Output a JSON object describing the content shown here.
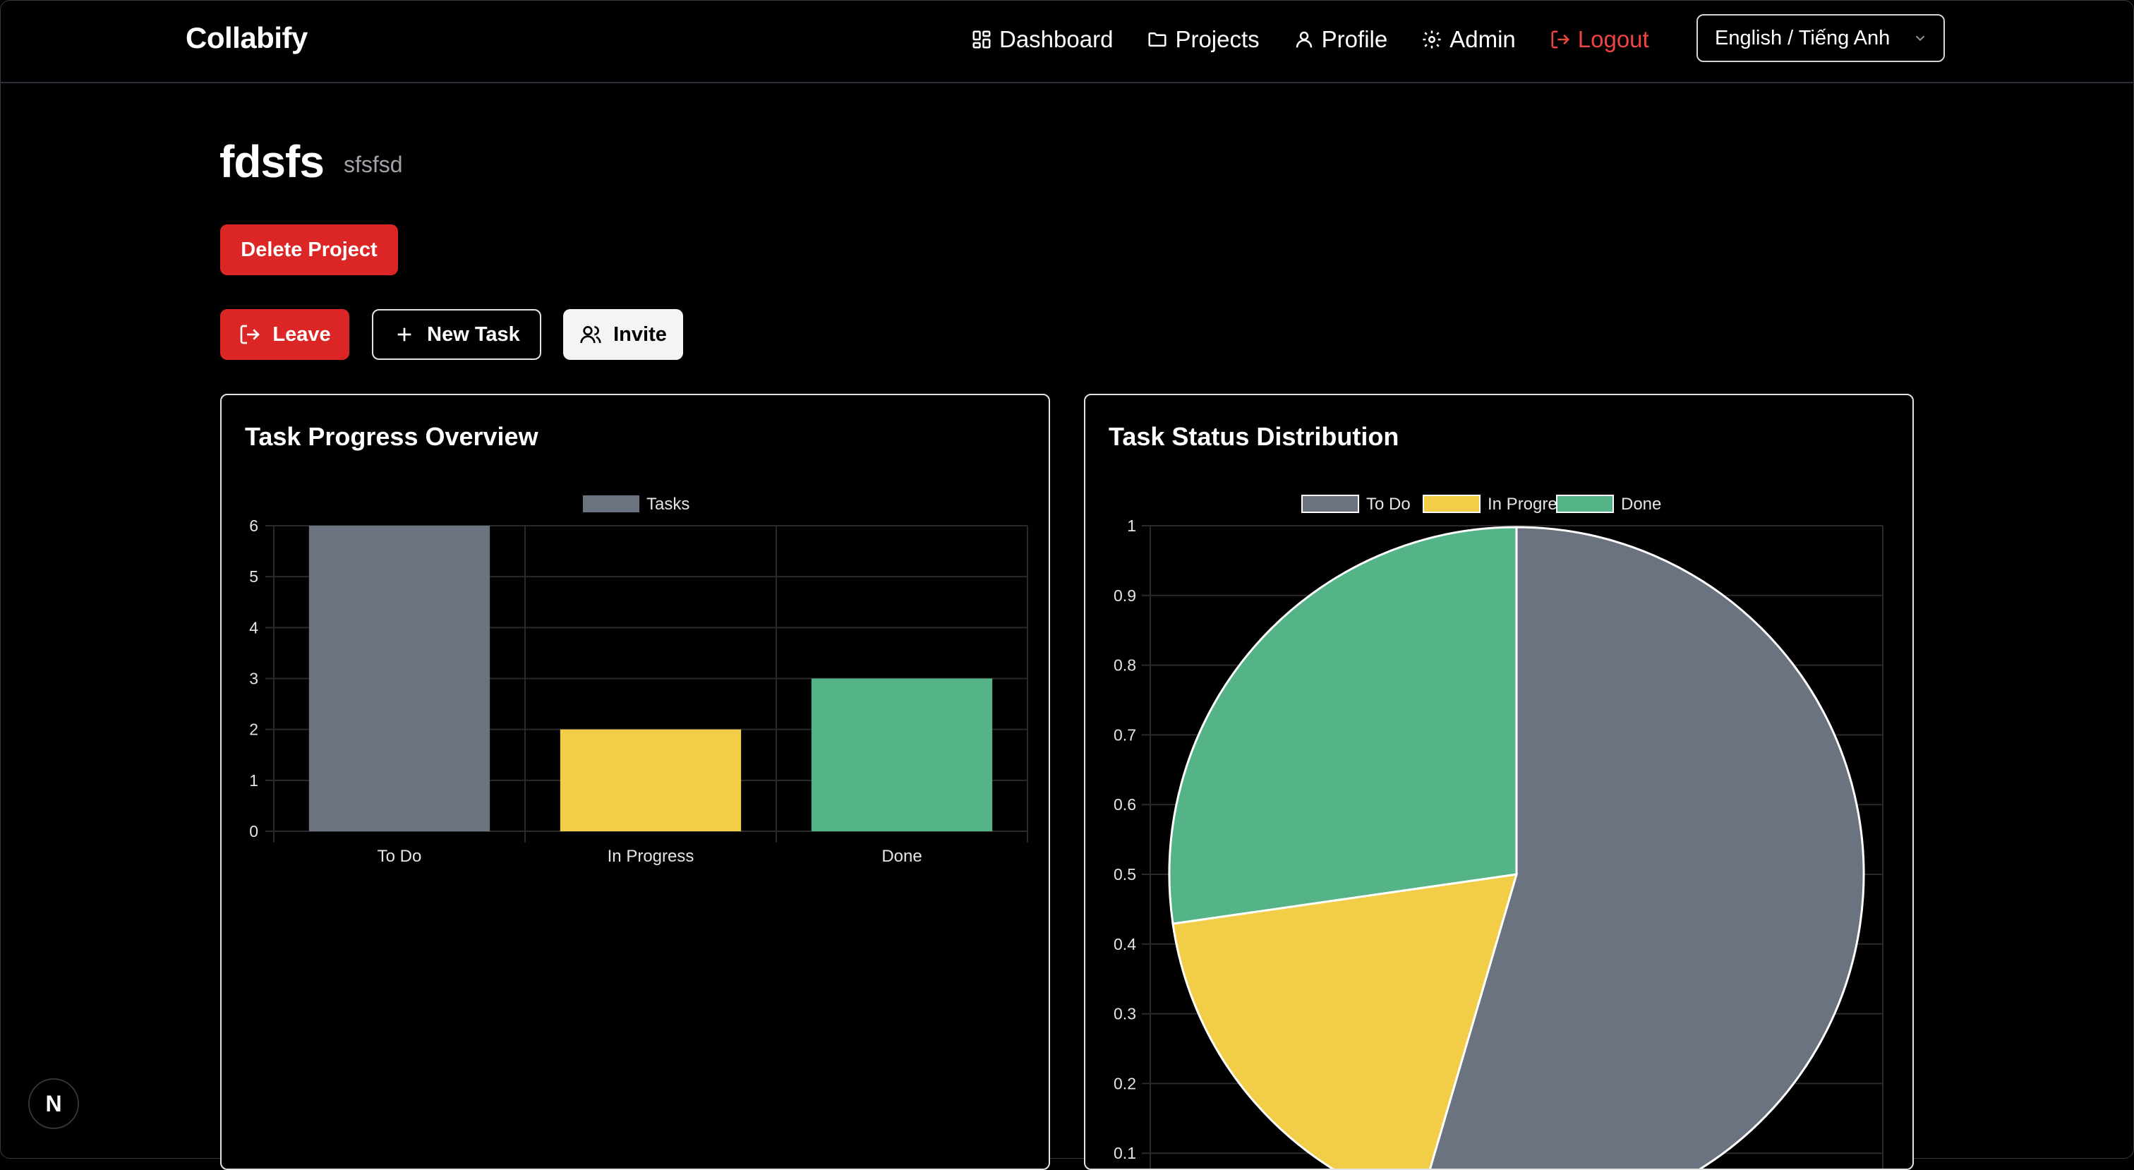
{
  "app": {
    "brand": "Collabify"
  },
  "nav": {
    "dashboard": "Dashboard",
    "projects": "Projects",
    "profile": "Profile",
    "admin": "Admin",
    "logout": "Logout",
    "language": "English / Tiếng Anh"
  },
  "project": {
    "name": "fdsfs",
    "description": "sfsfsd"
  },
  "actions": {
    "delete": "Delete Project",
    "leave": "Leave",
    "new_task": "New Task",
    "invite": "Invite"
  },
  "cards": {
    "progress_title": "Task Progress Overview",
    "status_title": "Task Status Distribution"
  },
  "badge": {
    "letter": "N"
  },
  "colors": {
    "todo": "#6b7280",
    "in_progress": "#f2cd48",
    "done": "#55b487",
    "danger": "#dc2626"
  },
  "chart_data": [
    {
      "type": "bar",
      "categories": [
        "To Do",
        "In Progress",
        "Done"
      ],
      "series": [
        {
          "name": "Tasks",
          "values": [
            6,
            2,
            3
          ]
        }
      ],
      "ylim": [
        0,
        6
      ],
      "yticks": [
        0,
        1,
        2,
        3,
        4,
        5,
        6
      ],
      "legend": "top-center",
      "grid": true
    },
    {
      "type": "pie",
      "labels": [
        "To Do",
        "In Progress",
        "Done"
      ],
      "values": [
        6,
        2,
        3
      ],
      "legend": "top-center",
      "yticks": [
        0.1,
        0.2,
        0.3,
        0.4,
        0.5,
        0.6,
        0.7,
        0.8,
        0.9,
        1
      ],
      "grid": true
    }
  ]
}
